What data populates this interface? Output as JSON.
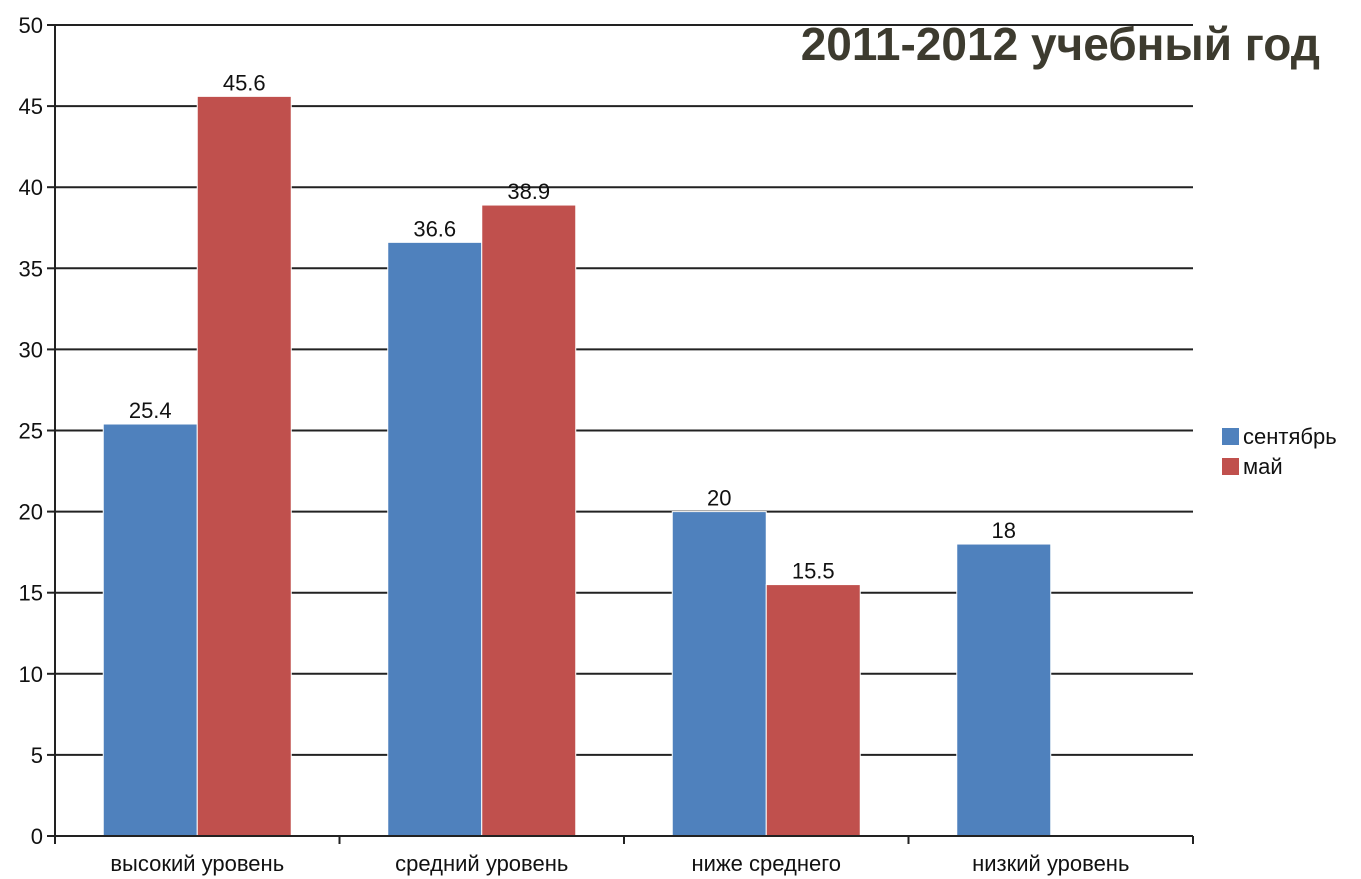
{
  "chart_data": {
    "type": "bar",
    "title": "2011-2012 учебный год",
    "xlabel": "",
    "ylabel": "",
    "categories": [
      "высокий уровень",
      "средний уровень",
      "ниже среднего",
      "низкий уровень"
    ],
    "series": [
      {
        "name": "сентябрь",
        "color": "#4f81bd",
        "values": [
          25.4,
          36.6,
          20,
          18
        ]
      },
      {
        "name": "май",
        "color": "#c0504d",
        "values": [
          45.6,
          38.9,
          15.5,
          null
        ]
      }
    ],
    "ylim": [
      0,
      50
    ],
    "yticks": [
      0,
      5,
      10,
      15,
      20,
      25,
      30,
      35,
      40,
      45,
      50
    ],
    "grid": true,
    "legend": "right",
    "data_labels": true
  }
}
